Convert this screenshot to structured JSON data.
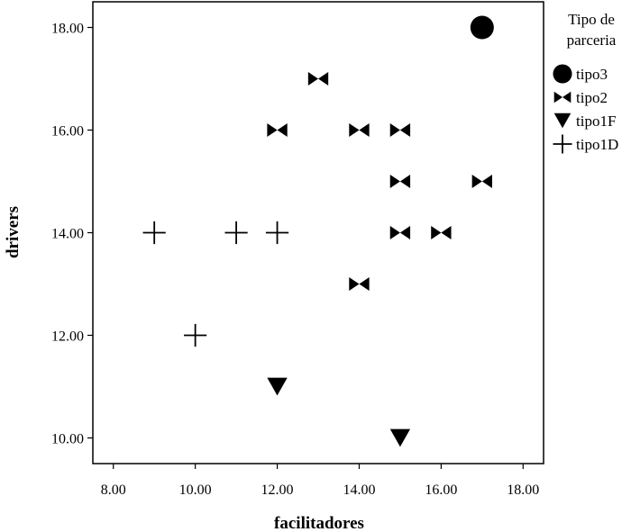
{
  "chart_data": {
    "type": "scatter",
    "xlabel": "facilitadores",
    "ylabel": "drivers",
    "xlim": [
      7.5,
      18.5
    ],
    "ylim": [
      9.5,
      18.5
    ],
    "xticks": [
      "8.00",
      "10.00",
      "12.00",
      "14.00",
      "16.00",
      "18.00"
    ],
    "yticks": [
      "10.00",
      "12.00",
      "14.00",
      "16.00",
      "18.00"
    ],
    "legend": {
      "title_lines": [
        "Tipo de",
        "parceria"
      ],
      "placement": "right"
    },
    "grid": false,
    "series": [
      {
        "name": "tipo3",
        "marker": "circle",
        "points": [
          [
            17,
            18
          ]
        ]
      },
      {
        "name": "tipo2",
        "marker": "bowtie",
        "points": [
          [
            13,
            17
          ],
          [
            12,
            16
          ],
          [
            14,
            16
          ],
          [
            15,
            16
          ],
          [
            15,
            15
          ],
          [
            17,
            15
          ],
          [
            15,
            14
          ],
          [
            16,
            14
          ],
          [
            14,
            13
          ]
        ]
      },
      {
        "name": "tipo1F",
        "marker": "triangle-down",
        "points": [
          [
            12,
            11
          ],
          [
            15,
            10
          ]
        ]
      },
      {
        "name": "tipo1D",
        "marker": "plus",
        "points": [
          [
            9,
            14
          ],
          [
            11,
            14
          ],
          [
            12,
            14
          ],
          [
            10,
            12
          ]
        ]
      }
    ],
    "color": "#000000"
  }
}
